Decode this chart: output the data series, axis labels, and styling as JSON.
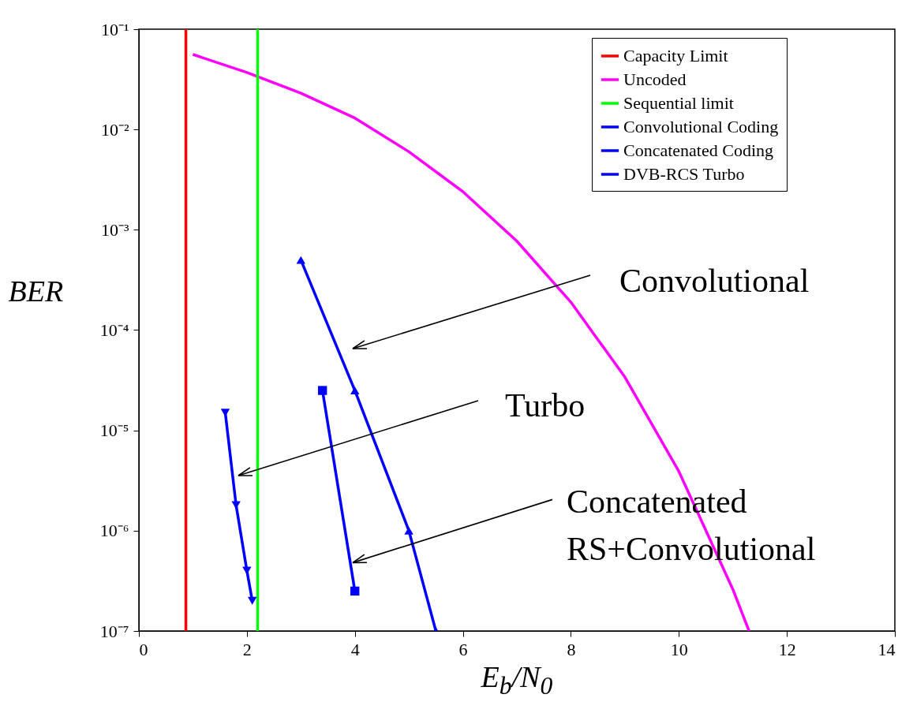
{
  "chart_data": {
    "type": "line",
    "xlabel": "E$_{b}$/N$_{0}$",
    "ylabel": "BER",
    "log": "y",
    "grid": false,
    "legend": "top right",
    "xlim": [
      0,
      14
    ],
    "xticks": [
      0,
      2,
      4,
      6,
      8,
      10,
      12,
      14
    ],
    "ylim": [
      1e-07,
      0.1
    ],
    "yticks": [
      {
        "value": 1e-07,
        "label": "10⁻⁷"
      },
      {
        "value": 1e-06,
        "label": "10⁻⁶"
      },
      {
        "value": 1e-05,
        "label": "10⁻⁵"
      },
      {
        "value": 0.0001,
        "label": "10⁻⁴"
      },
      {
        "value": 0.001,
        "label": "10⁻³"
      },
      {
        "value": 0.01,
        "label": "10⁻²"
      },
      {
        "value": 0.1,
        "label": "10⁻¹"
      }
    ],
    "series": [
      {
        "name": "Capacity Limit",
        "color": "#ff0000",
        "marker": "none",
        "x": [
          0.87,
          0.87
        ],
        "values": [
          1e-07,
          0.1
        ]
      },
      {
        "name": "Uncoded",
        "color": "#ff00ff",
        "marker": "none",
        "x": [
          1,
          2,
          3,
          4,
          5,
          6,
          7,
          8,
          9,
          10,
          11,
          11.3
        ],
        "values": [
          0.056,
          0.037,
          0.023,
          0.013,
          0.006,
          0.0024,
          0.00077,
          0.00019,
          3.4e-05,
          3.9e-06,
          2.6e-07,
          1e-07
        ]
      },
      {
        "name": "Sequential limit",
        "color": "#00ff00",
        "marker": "none",
        "x": [
          2.2,
          2.2
        ],
        "values": [
          1e-07,
          0.1
        ]
      },
      {
        "name": "Convolutional Coding",
        "color": "#0000ff",
        "marker": "triangle",
        "x": [
          3,
          4,
          5,
          5.5
        ],
        "values": [
          0.0005,
          2.5e-05,
          1e-06,
          1e-07
        ]
      },
      {
        "name": "Concatenated Coding",
        "color": "#0000ff",
        "marker": "square",
        "x": [
          3.4,
          4
        ],
        "values": [
          2.5e-05,
          2.5e-07
        ]
      },
      {
        "name": "DVB-RCS Turbo",
        "color": "#0000ff",
        "marker": "triangle-down",
        "x": [
          1.6,
          1.8,
          2,
          2.1
        ],
        "values": [
          1.5e-05,
          1.8e-06,
          4e-07,
          2e-07
        ]
      }
    ],
    "annotations": [
      "Convolutional",
      "Turbo",
      {
        "text": "Concatenated\nRS+Convolutional",
        "x": 3.96,
        "y": 4.8e-07
      }
    ]
  }
}
